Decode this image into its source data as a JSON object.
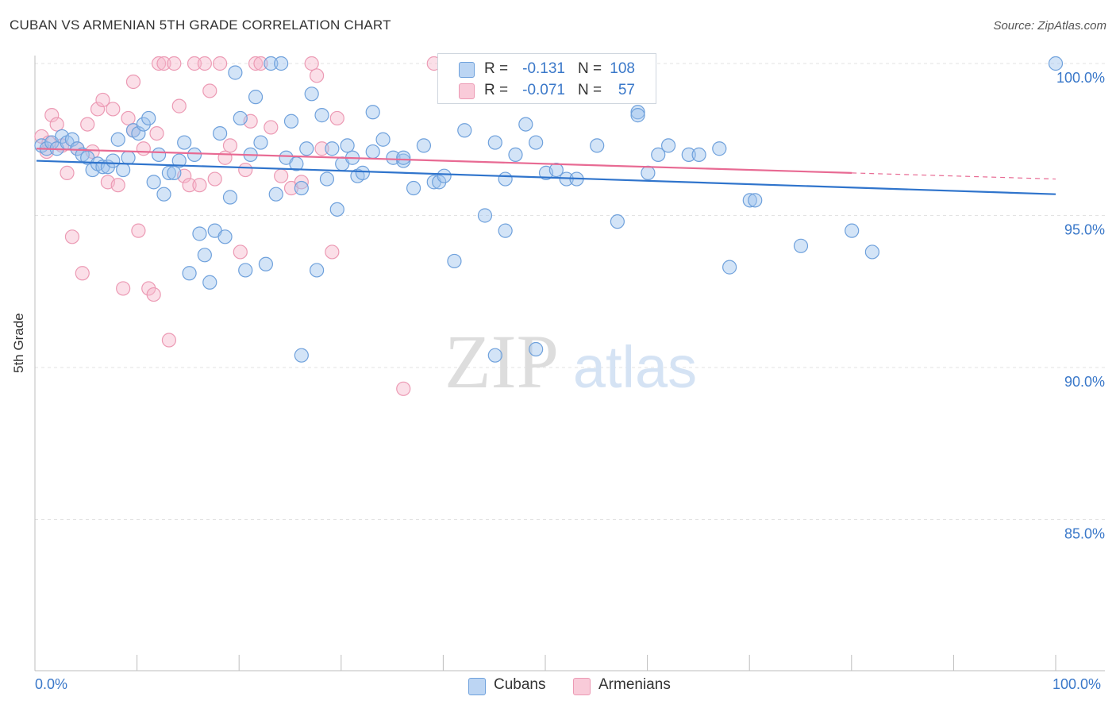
{
  "title": "CUBAN VS ARMENIAN 5TH GRADE CORRELATION CHART",
  "source": "Source: ZipAtlas.com",
  "watermark": {
    "zip": "ZIP",
    "atlas": "atlas"
  },
  "legend": {
    "rows": [
      {
        "r_label": "R =",
        "r_value": "-0.131",
        "n_label": "N =",
        "n_value": "108"
      },
      {
        "r_label": "R =",
        "r_value": "-0.071",
        "n_label": "N =",
        "n_value": "57"
      }
    ]
  },
  "colors": {
    "cubans_fill": "#9ec3ee",
    "cubans_stroke": "#6fa1dc",
    "cubans_line": "#2f74cc",
    "armenians_fill": "#f6b8cb",
    "armenians_stroke": "#ec9ab4",
    "armenians_line": "#e86a93",
    "grid": "#e3e3e3",
    "axis_label": "#3a78c9"
  },
  "chart_data": {
    "type": "scatter",
    "title": "CUBAN VS ARMENIAN 5TH GRADE CORRELATION CHART",
    "xlabel": "",
    "ylabel": "5th Grade",
    "xlim": [
      0,
      100
    ],
    "ylim": [
      80.5,
      100.9
    ],
    "x_tick_labels": [
      "0.0%",
      "100.0%"
    ],
    "y_ticks": [
      85,
      90,
      95,
      100
    ],
    "y_tick_labels": [
      "85.0%",
      "90.0%",
      "95.0%",
      "100.0%"
    ],
    "grid": true,
    "legend_position": "top-center",
    "series": [
      {
        "name": "Cubans",
        "r": -0.131,
        "n": 108,
        "trend": {
          "x0": 0,
          "y0": 96.8,
          "x1": 100,
          "y1": 95.7
        },
        "points": [
          [
            0.5,
            97.3
          ],
          [
            1,
            97.2
          ],
          [
            1.5,
            97.4
          ],
          [
            2,
            97.2
          ],
          [
            2.5,
            97.6
          ],
          [
            3,
            97.4
          ],
          [
            3.5,
            97.5
          ],
          [
            4,
            97.2
          ],
          [
            4.5,
            97.0
          ],
          [
            5,
            96.9
          ],
          [
            5.5,
            96.5
          ],
          [
            6,
            96.7
          ],
          [
            6.5,
            96.6
          ],
          [
            7,
            96.6
          ],
          [
            7.5,
            96.8
          ],
          [
            8,
            97.5
          ],
          [
            8.5,
            96.5
          ],
          [
            9,
            96.9
          ],
          [
            9.5,
            97.8
          ],
          [
            10,
            97.7
          ],
          [
            10.5,
            98.0
          ],
          [
            11,
            98.2
          ],
          [
            11.5,
            96.1
          ],
          [
            12,
            97.0
          ],
          [
            12.5,
            95.7
          ],
          [
            13,
            96.4
          ],
          [
            13.5,
            96.4
          ],
          [
            14,
            96.8
          ],
          [
            14.5,
            97.4
          ],
          [
            15,
            93.1
          ],
          [
            15.5,
            97.0
          ],
          [
            16,
            94.4
          ],
          [
            16.5,
            93.7
          ],
          [
            17,
            92.8
          ],
          [
            17.5,
            94.5
          ],
          [
            18,
            97.7
          ],
          [
            18.5,
            94.3
          ],
          [
            19,
            95.6
          ],
          [
            19.5,
            99.7
          ],
          [
            20,
            98.2
          ],
          [
            20.5,
            93.2
          ],
          [
            21,
            97.0
          ],
          [
            21.5,
            98.9
          ],
          [
            22,
            97.4
          ],
          [
            22.5,
            93.4
          ],
          [
            23,
            100.0
          ],
          [
            23.5,
            95.7
          ],
          [
            24,
            100.0
          ],
          [
            24.5,
            96.9
          ],
          [
            25,
            98.1
          ],
          [
            25.5,
            96.7
          ],
          [
            26,
            95.9
          ],
          [
            26.5,
            97.2
          ],
          [
            27,
            99.0
          ],
          [
            27.5,
            93.2
          ],
          [
            28,
            98.3
          ],
          [
            28.5,
            96.2
          ],
          [
            29,
            97.2
          ],
          [
            29.5,
            95.2
          ],
          [
            30,
            96.7
          ],
          [
            30.5,
            97.3
          ],
          [
            31,
            96.9
          ],
          [
            31.5,
            96.3
          ],
          [
            32,
            96.4
          ],
          [
            33,
            97.1
          ],
          [
            34,
            97.5
          ],
          [
            35,
            96.9
          ],
          [
            36,
            96.8
          ],
          [
            37,
            95.9
          ],
          [
            38,
            97.3
          ],
          [
            39,
            96.1
          ],
          [
            39.5,
            96.1
          ],
          [
            40,
            96.3
          ],
          [
            41,
            93.5
          ],
          [
            42,
            97.8
          ],
          [
            44,
            95.0
          ],
          [
            45,
            97.4
          ],
          [
            46,
            94.5
          ],
          [
            47,
            97.0
          ],
          [
            48,
            98.0
          ],
          [
            49,
            97.4
          ],
          [
            50,
            96.4
          ],
          [
            51,
            96.5
          ],
          [
            52,
            96.2
          ],
          [
            53,
            96.2
          ],
          [
            55,
            97.3
          ],
          [
            57,
            94.8
          ],
          [
            59,
            98.4
          ],
          [
            60,
            96.4
          ],
          [
            61,
            97.0
          ],
          [
            62,
            97.3
          ],
          [
            64,
            97.0
          ],
          [
            65,
            97.0
          ],
          [
            67,
            97.2
          ],
          [
            68,
            93.3
          ],
          [
            70,
            95.5
          ],
          [
            70.5,
            95.5
          ],
          [
            75,
            94.0
          ],
          [
            80,
            94.5
          ],
          [
            82,
            93.8
          ],
          [
            26,
            90.4
          ],
          [
            45,
            90.4
          ],
          [
            49,
            90.6
          ],
          [
            59,
            98.3
          ],
          [
            46,
            96.2
          ],
          [
            33,
            98.4
          ],
          [
            36,
            96.9
          ],
          [
            100,
            100.0
          ]
        ]
      },
      {
        "name": "Armenians",
        "r": -0.071,
        "n": 57,
        "trend": {
          "x0": 0,
          "y0": 97.2,
          "x1": 80,
          "y1": 96.4,
          "dash_to_x": 100,
          "dash_to_y": 96.2
        },
        "points": [
          [
            0.5,
            97.6
          ],
          [
            1,
            97.1
          ],
          [
            1.5,
            98.3
          ],
          [
            2,
            98.0
          ],
          [
            2.5,
            97.3
          ],
          [
            3,
            96.4
          ],
          [
            3.5,
            94.3
          ],
          [
            4,
            97.2
          ],
          [
            4.5,
            93.1
          ],
          [
            5,
            98.0
          ],
          [
            5.5,
            97.1
          ],
          [
            6,
            98.5
          ],
          [
            6.5,
            98.8
          ],
          [
            7,
            96.1
          ],
          [
            7.5,
            98.5
          ],
          [
            8,
            96.0
          ],
          [
            8.5,
            92.6
          ],
          [
            9,
            98.2
          ],
          [
            9.5,
            99.4
          ],
          [
            10,
            94.5
          ],
          [
            10.5,
            97.2
          ],
          [
            11,
            92.6
          ],
          [
            11.5,
            92.4
          ],
          [
            12,
            100.0
          ],
          [
            12.5,
            100.0
          ],
          [
            13,
            90.9
          ],
          [
            13.5,
            100.0
          ],
          [
            14,
            98.6
          ],
          [
            14.5,
            96.3
          ],
          [
            15,
            96.0
          ],
          [
            15.5,
            100.0
          ],
          [
            16,
            96.0
          ],
          [
            16.5,
            100.0
          ],
          [
            17,
            99.1
          ],
          [
            17.5,
            96.2
          ],
          [
            18,
            100.0
          ],
          [
            19,
            97.3
          ],
          [
            20,
            93.8
          ],
          [
            20.5,
            96.5
          ],
          [
            21,
            98.1
          ],
          [
            21.5,
            100.0
          ],
          [
            22,
            100.0
          ],
          [
            23,
            97.9
          ],
          [
            24,
            96.3
          ],
          [
            25,
            95.9
          ],
          [
            26,
            96.1
          ],
          [
            27,
            100.0
          ],
          [
            27.5,
            99.6
          ],
          [
            28,
            97.2
          ],
          [
            29,
            93.8
          ],
          [
            36,
            89.3
          ],
          [
            39,
            100.0
          ],
          [
            9.5,
            97.8
          ],
          [
            11.8,
            97.7
          ],
          [
            1.2,
            97.4
          ],
          [
            29.5,
            98.2
          ],
          [
            18.5,
            96.9
          ]
        ]
      }
    ]
  },
  "bottom_legend": [
    "Cubans",
    "Armenians"
  ]
}
